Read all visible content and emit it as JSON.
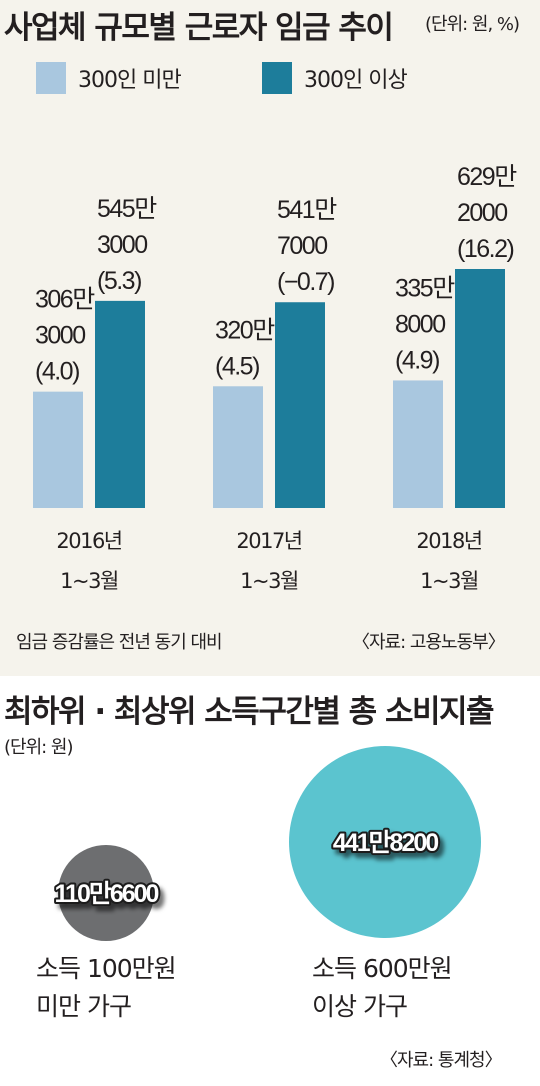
{
  "chart_data": [
    {
      "type": "bar",
      "title": "사업체 규모별 근로자 임금 추이",
      "unit": "(단위: 원, %)",
      "categories": [
        {
          "year": "2016년",
          "period": "1~3월"
        },
        {
          "year": "2017년",
          "period": "1~3월"
        },
        {
          "year": "2018년",
          "period": "1~3월"
        }
      ],
      "series": [
        {
          "name": "300인 미만",
          "color": "#a9c7df",
          "values": [
            3063000,
            3204500,
            3358000
          ],
          "labels": [
            [
              "306만",
              "3000",
              "(4.0)"
            ],
            [
              "320만",
              "(4.5)"
            ],
            [
              "335만",
              "8000",
              "(4.9)"
            ]
          ],
          "growth": [
            4.0,
            4.5,
            4.9
          ]
        },
        {
          "name": "300인 이상",
          "color": "#1d7d9b",
          "values": [
            5453000,
            5417000,
            6292000
          ],
          "labels": [
            [
              "545만",
              "3000",
              "(5.3)"
            ],
            [
              "541만",
              "7000",
              "(−0.7)"
            ],
            [
              "629만",
              "2000",
              "(16.2)"
            ]
          ],
          "growth": [
            5.3,
            -0.7,
            16.2
          ]
        }
      ],
      "note": "임금 증감률은 전년 동기 대비",
      "source": "〈자료: 고용노동부〉"
    },
    {
      "type": "bubble",
      "title": "최하위 · 최상위 소득구간별 총 소비지출",
      "unit": "(단위: 원)",
      "items": [
        {
          "label_lines": [
            "소득 100만원",
            "미만 가구"
          ],
          "value": 1106600,
          "value_label": "110만6600",
          "color": "#6d6e70"
        },
        {
          "label_lines": [
            "소득 600만원",
            "이상 가구"
          ],
          "value": 4418200,
          "value_label": "441만8200",
          "color": "#5bc4cf"
        }
      ],
      "source": "〈자료: 통계청〉"
    }
  ]
}
